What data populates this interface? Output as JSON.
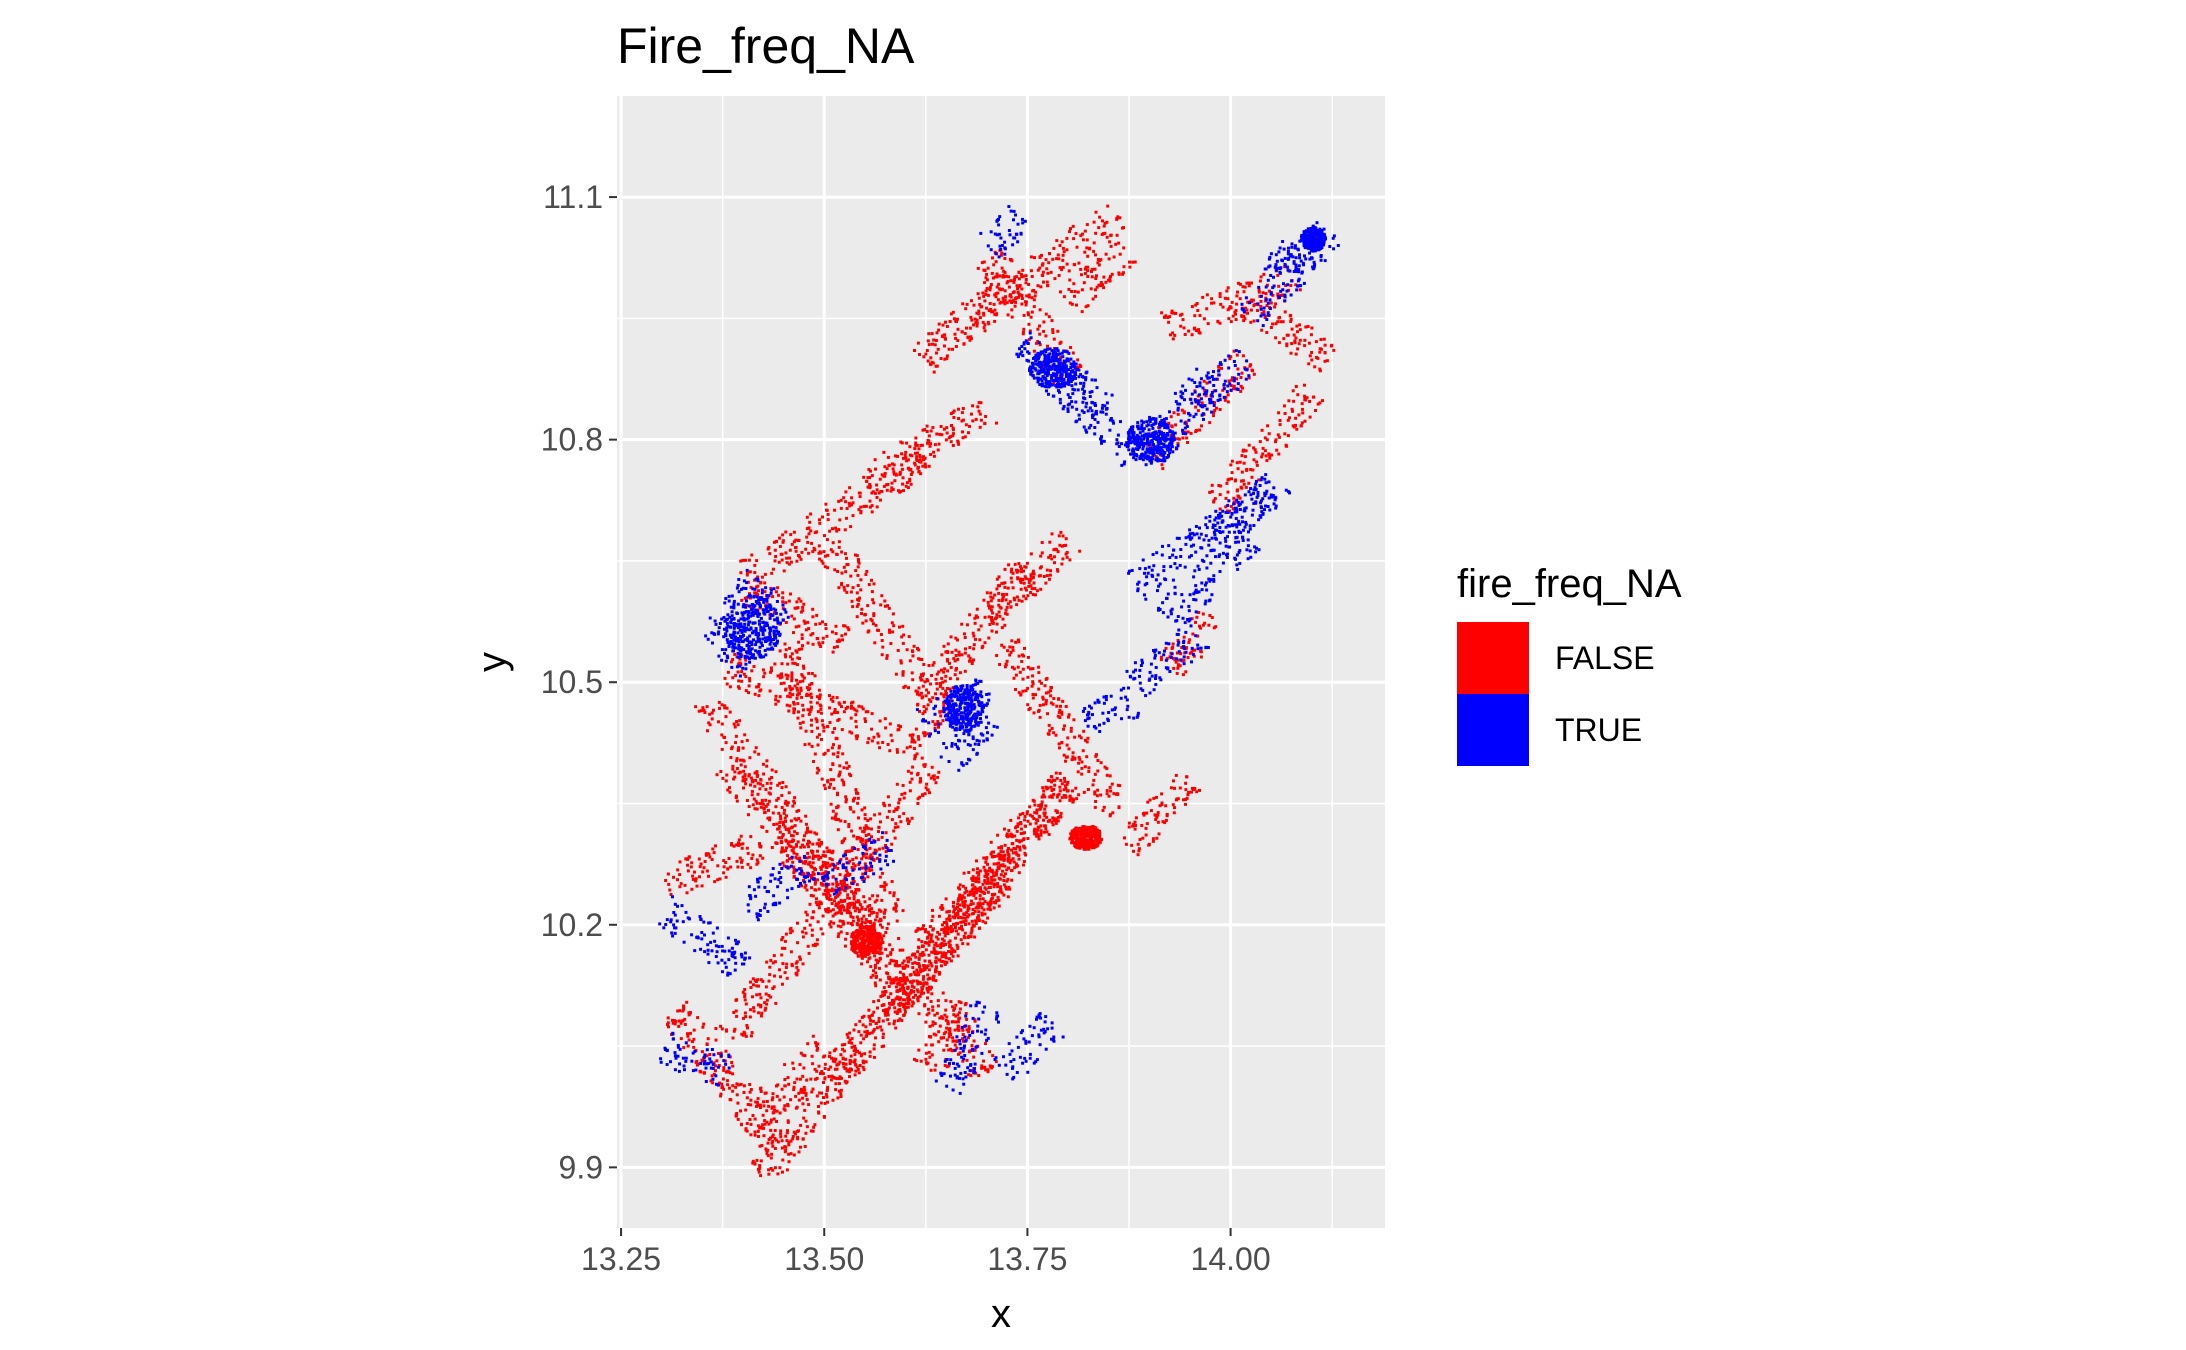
{
  "chart_data": {
    "type": "scatter",
    "title": "Fire_freq_NA",
    "xlabel": "x",
    "ylabel": "y",
    "xlim": [
      13.245,
      14.19
    ],
    "ylim": [
      9.825,
      11.225
    ],
    "x_ticks": [
      {
        "value": 13.25,
        "label": "13.25"
      },
      {
        "value": 13.5,
        "label": "13.50"
      },
      {
        "value": 13.75,
        "label": "13.75"
      },
      {
        "value": 14.0,
        "label": "14.00"
      }
    ],
    "y_ticks": [
      {
        "value": 9.9,
        "label": "9.9"
      },
      {
        "value": 10.2,
        "label": "10.2"
      },
      {
        "value": 10.5,
        "label": "10.5"
      },
      {
        "value": 10.8,
        "label": "10.8"
      },
      {
        "value": 11.1,
        "label": "11.1"
      }
    ],
    "x_minor": [
      13.375,
      13.625,
      13.875,
      14.125
    ],
    "y_minor": [
      10.05,
      10.35,
      10.65,
      10.95
    ],
    "grid": true,
    "panel_background": "#ebebeb",
    "grid_color": "#ffffff",
    "legend": {
      "title": "fire_freq_NA",
      "position": "right",
      "entries": [
        {
          "label": "FALSE",
          "color": "#ff0000"
        },
        {
          "label": "TRUE",
          "color": "#0000ff"
        }
      ]
    },
    "series": [
      {
        "label": "FALSE",
        "color": "#ff0000",
        "strokes": [
          [
            [
              13.42,
              9.89
            ],
            [
              13.8,
              10.38
            ]
          ],
          [
            [
              13.45,
              9.92
            ],
            [
              13.31,
              10.1
            ]
          ],
          [
            [
              13.38,
              10.06
            ],
            [
              13.63,
              10.4
            ]
          ],
          [
            [
              13.5,
              10.01
            ],
            [
              13.72,
              10.26
            ]
          ],
          [
            [
              13.58,
              10.1
            ],
            [
              13.8,
              10.38
            ]
          ],
          [
            [
              13.55,
              10.2
            ],
            [
              13.35,
              10.48
            ]
          ],
          [
            [
              13.6,
              10.11
            ],
            [
              13.38,
              10.4
            ]
          ],
          [
            [
              13.7,
              10.02
            ],
            [
              13.45,
              10.32
            ]
          ],
          [
            [
              13.58,
              10.2
            ],
            [
              13.45,
              10.55
            ]
          ],
          [
            [
              13.52,
              10.55
            ],
            [
              13.4,
              10.62
            ]
          ],
          [
            [
              13.38,
              10.52
            ],
            [
              13.62,
              10.42
            ]
          ],
          [
            [
              13.62,
              10.48
            ],
            [
              13.75,
              10.65
            ]
          ],
          [
            [
              13.65,
              10.45
            ],
            [
              13.5,
              10.68
            ]
          ],
          [
            [
              13.72,
              10.55
            ],
            [
              13.86,
              10.34
            ]
          ],
          [
            [
              13.75,
              10.33
            ],
            [
              13.6,
              10.15
            ]
          ],
          [
            [
              13.8,
              10.68
            ],
            [
              13.7,
              10.58
            ]
          ],
          [
            [
              13.55,
              10.75
            ],
            [
              13.7,
              10.84
            ]
          ],
          [
            [
              13.4,
              10.63
            ],
            [
              13.62,
              10.78
            ]
          ],
          [
            [
              13.68,
              10.95
            ],
            [
              13.86,
              11.08
            ]
          ],
          [
            [
              13.7,
              11.03
            ],
            [
              13.8,
              10.88
            ]
          ],
          [
            [
              13.62,
              10.9
            ],
            [
              13.73,
              11.0
            ]
          ],
          [
            [
              13.8,
              10.97
            ],
            [
              13.87,
              11.04
            ]
          ],
          [
            [
              13.9,
              10.78
            ],
            [
              14.02,
              10.9
            ]
          ],
          [
            [
              13.92,
              10.94
            ],
            [
              14.08,
              11.0
            ]
          ],
          [
            [
              14.02,
              10.97
            ],
            [
              14.12,
              10.9
            ]
          ],
          [
            [
              13.98,
              10.72
            ],
            [
              14.1,
              10.86
            ]
          ],
          [
            [
              13.87,
              10.3
            ],
            [
              13.95,
              10.38
            ]
          ],
          [
            [
              13.92,
              10.52
            ],
            [
              13.98,
              10.58
            ]
          ],
          [
            [
              13.62,
              10.02
            ],
            [
              13.68,
              10.1
            ]
          ],
          [
            [
              13.4,
              9.95
            ],
            [
              13.5,
              10.05
            ]
          ],
          [
            [
              13.3,
              10.25
            ],
            [
              13.42,
              10.3
            ]
          ]
        ]
      },
      {
        "label": "TRUE",
        "color": "#0000ff",
        "strokes": [
          [
            [
              13.38,
              10.52
            ],
            [
              13.45,
              10.6
            ]
          ],
          [
            [
              13.36,
              10.55
            ],
            [
              13.42,
              10.63
            ]
          ],
          [
            [
              13.78,
              10.88
            ],
            [
              13.88,
              10.78
            ]
          ],
          [
            [
              13.74,
              10.92
            ],
            [
              13.85,
              10.84
            ]
          ],
          [
            [
              13.9,
              10.78
            ],
            [
              13.97,
              10.88
            ]
          ],
          [
            [
              13.95,
              10.84
            ],
            [
              14.02,
              10.9
            ]
          ],
          [
            [
              14.02,
              10.95
            ],
            [
              14.12,
              11.06
            ]
          ],
          [
            [
              14.05,
              11.0
            ],
            [
              14.08,
              11.04
            ]
          ],
          [
            [
              13.88,
              10.62
            ],
            [
              14.05,
              10.74
            ]
          ],
          [
            [
              13.92,
              10.58
            ],
            [
              14.02,
              10.68
            ]
          ],
          [
            [
              13.98,
              10.68
            ],
            [
              14.06,
              10.75
            ]
          ],
          [
            [
              13.62,
              10.45
            ],
            [
              13.7,
              10.49
            ]
          ],
          [
            [
              13.65,
              10.4
            ],
            [
              13.7,
              10.46
            ]
          ],
          [
            [
              13.7,
              10.1
            ],
            [
              13.65,
              10.0
            ]
          ],
          [
            [
              13.72,
              10.02
            ],
            [
              13.78,
              10.08
            ]
          ],
          [
            [
              13.3,
              10.22
            ],
            [
              13.4,
              10.15
            ]
          ],
          [
            [
              13.3,
              10.05
            ],
            [
              13.38,
              10.02
            ]
          ],
          [
            [
              13.5,
              10.25
            ],
            [
              13.58,
              10.3
            ]
          ],
          [
            [
              13.7,
              11.04
            ],
            [
              13.74,
              11.08
            ]
          ],
          [
            [
              13.88,
              10.5
            ],
            [
              13.96,
              10.56
            ]
          ],
          [
            [
              13.82,
              10.45
            ],
            [
              13.88,
              10.48
            ]
          ],
          [
            [
              13.4,
              10.22
            ],
            [
              13.48,
              10.28
            ]
          ]
        ]
      }
    ],
    "clusters": [
      {
        "color": "#0000ff",
        "center": [
          13.41,
          10.57
        ],
        "radius": [
          0.035,
          0.04
        ]
      },
      {
        "color": "#0000ff",
        "center": [
          13.67,
          10.47
        ],
        "radius": [
          0.025,
          0.03
        ]
      },
      {
        "color": "#0000ff",
        "center": [
          14.1,
          11.05
        ],
        "radius": [
          0.015,
          0.015
        ]
      },
      {
        "color": "#0000ff",
        "center": [
          13.9,
          10.8
        ],
        "radius": [
          0.03,
          0.03
        ]
      },
      {
        "color": "#0000ff",
        "center": [
          13.78,
          10.89
        ],
        "radius": [
          0.03,
          0.025
        ]
      },
      {
        "color": "#ff0000",
        "center": [
          13.82,
          10.31
        ],
        "radius": [
          0.02,
          0.015
        ]
      },
      {
        "color": "#ff0000",
        "center": [
          13.55,
          10.18
        ],
        "radius": [
          0.02,
          0.02
        ]
      }
    ]
  }
}
